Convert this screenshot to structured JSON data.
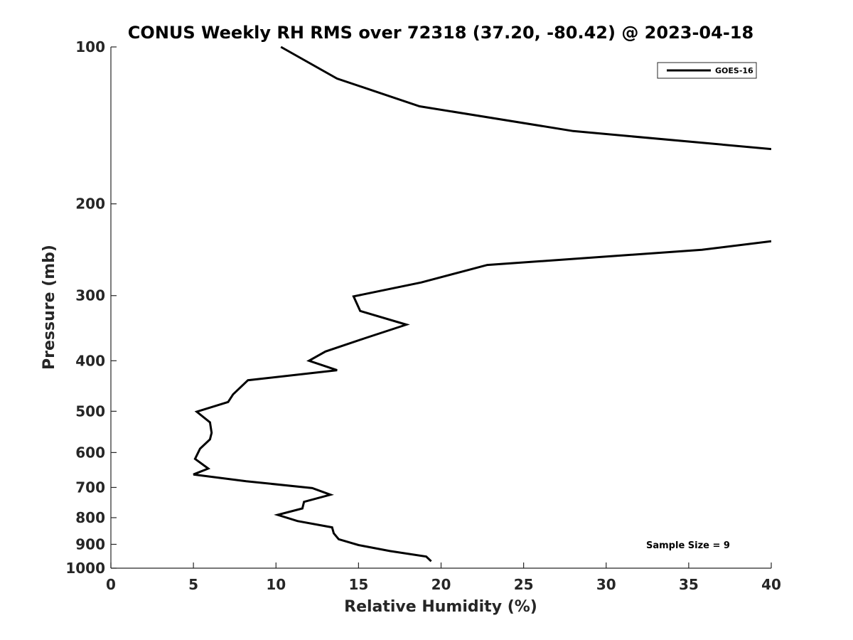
{
  "chart_data": {
    "type": "line",
    "title": "CONUS Weekly RH RMS over 72318 (37.20, -80.42) @ 2023-04-18",
    "xlabel": "Relative Humidity (%)",
    "ylabel": "Pressure (mb)",
    "xlim": [
      0,
      40
    ],
    "ylim": [
      100,
      1000
    ],
    "yscale": "log",
    "y_reversed": true,
    "grid": false,
    "legend_position": "top-right",
    "x_ticks": [
      "0",
      "5",
      "10",
      "15",
      "20",
      "25",
      "30",
      "35",
      "40"
    ],
    "y_ticks": [
      "100",
      "200",
      "300",
      "400",
      "500",
      "600",
      "700",
      "800",
      "900",
      "1000"
    ],
    "annotation": "Sample Size = 9",
    "series": [
      {
        "name": "GOES-16",
        "color": "#000000",
        "points": [
          [
            10.3,
            100
          ],
          [
            13.7,
            115
          ],
          [
            18.7,
            130
          ],
          [
            28.0,
            145
          ],
          [
            40.0,
            157
          ],
          [
            null,
            168
          ],
          [
            null,
            180
          ],
          [
            null,
            200
          ],
          [
            null,
            215
          ],
          [
            40.0,
            236
          ],
          [
            35.8,
            245
          ],
          [
            22.8,
            262
          ],
          [
            18.8,
            283
          ],
          [
            14.7,
            301
          ],
          [
            15.1,
            321
          ],
          [
            17.9,
            341
          ],
          [
            15.4,
            362
          ],
          [
            13.0,
            384
          ],
          [
            12.0,
            400
          ],
          [
            13.7,
            417
          ],
          [
            8.3,
            436
          ],
          [
            7.4,
            464
          ],
          [
            7.1,
            480
          ],
          [
            5.2,
            501
          ],
          [
            6.0,
            525
          ],
          [
            6.1,
            550
          ],
          [
            6.0,
            566
          ],
          [
            5.4,
            590
          ],
          [
            5.1,
            617
          ],
          [
            5.9,
            644
          ],
          [
            5.0,
            661
          ],
          [
            8.2,
            681
          ],
          [
            12.2,
            702
          ],
          [
            13.3,
            723
          ],
          [
            11.7,
            746
          ],
          [
            11.6,
            768
          ],
          [
            10.1,
            790
          ],
          [
            11.3,
            812
          ],
          [
            13.4,
            835
          ],
          [
            13.5,
            857
          ],
          [
            13.8,
            880
          ],
          [
            15.0,
            903
          ],
          [
            16.9,
            927
          ],
          [
            19.1,
            950
          ],
          [
            19.4,
            970
          ]
        ]
      }
    ]
  }
}
